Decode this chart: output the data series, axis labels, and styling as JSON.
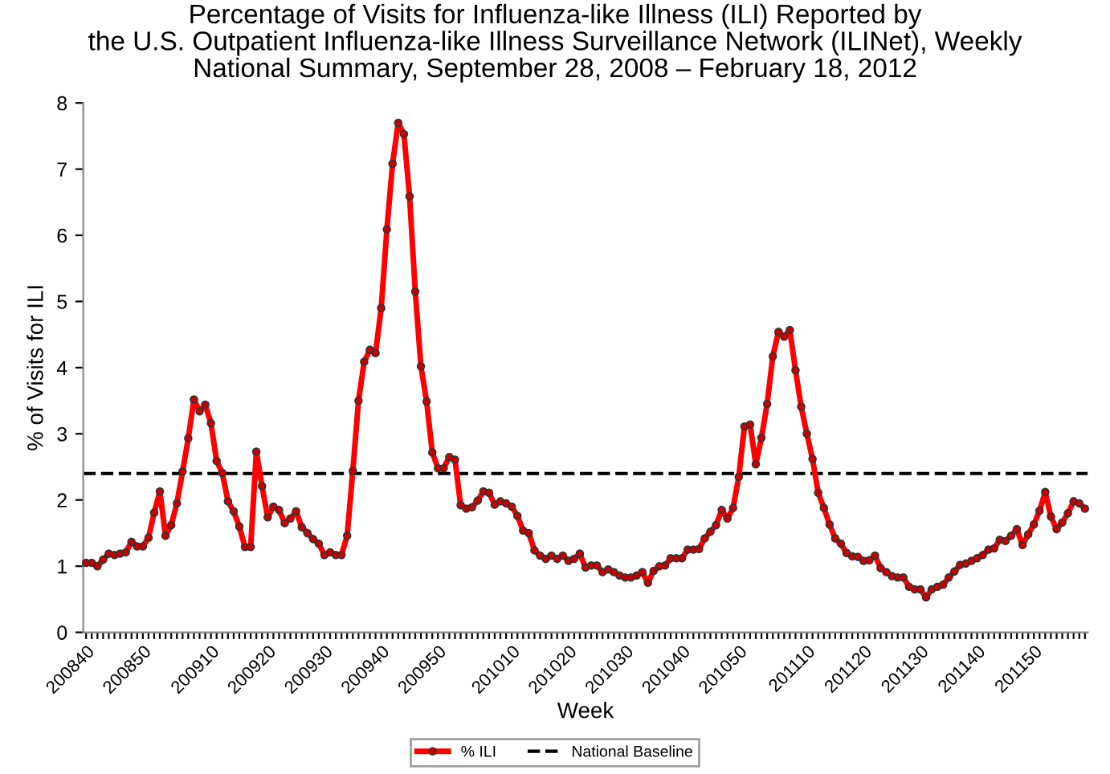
{
  "chart_data": {
    "type": "line",
    "title": "Percentage of Visits for Influenza-like Illness (ILI) Reported by\nthe U.S. Outpatient Influenza-like Illness Surveillance Network (ILINet), Weekly\nNational Summary, September 28, 2008 – February 18, 2012",
    "xlabel": "Week",
    "ylabel": "% of Visits for ILI",
    "categories": [
      "200840",
      null,
      null,
      null,
      null,
      null,
      null,
      null,
      null,
      null,
      "200850",
      null,
      null,
      null,
      null,
      null,
      null,
      null,
      null,
      null,
      null,
      null,
      "200910",
      null,
      null,
      null,
      null,
      null,
      null,
      null,
      null,
      null,
      "200920",
      null,
      null,
      null,
      null,
      null,
      null,
      null,
      null,
      null,
      "200930",
      null,
      null,
      null,
      null,
      null,
      null,
      null,
      null,
      null,
      "200940",
      null,
      null,
      null,
      null,
      null,
      null,
      null,
      null,
      null,
      "200950",
      null,
      null,
      null,
      null,
      null,
      null,
      null,
      null,
      null,
      null,
      null,
      null,
      "201010",
      null,
      null,
      null,
      null,
      null,
      null,
      null,
      null,
      null,
      "201020",
      null,
      null,
      null,
      null,
      null,
      null,
      null,
      null,
      null,
      "201030",
      null,
      null,
      null,
      null,
      null,
      null,
      null,
      null,
      null,
      "201040",
      null,
      null,
      null,
      null,
      null,
      null,
      null,
      null,
      null,
      "201050",
      null,
      null,
      null,
      null,
      null,
      null,
      null,
      null,
      null,
      null,
      null,
      "201110",
      null,
      null,
      null,
      null,
      null,
      null,
      null,
      null,
      null,
      "201120",
      null,
      null,
      null,
      null,
      null,
      null,
      null,
      null,
      null,
      "201130",
      null,
      null,
      null,
      null,
      null,
      null,
      null,
      null,
      null,
      "201140",
      null,
      null,
      null,
      null,
      null,
      null,
      null,
      null,
      null,
      "201150",
      null,
      null,
      null,
      null,
      null,
      null,
      null,
      null,
      null
    ],
    "series": [
      {
        "name": "% ILI",
        "color": "#ff0000",
        "values": [
          1.05,
          1.05,
          1.0,
          1.1,
          1.19,
          1.17,
          1.19,
          1.21,
          1.37,
          1.3,
          1.3,
          1.43,
          1.81,
          2.13,
          1.46,
          1.62,
          1.95,
          2.43,
          2.93,
          3.52,
          3.34,
          3.44,
          3.16,
          2.59,
          2.41,
          1.98,
          1.83,
          1.6,
          1.29,
          1.29,
          2.73,
          2.21,
          1.74,
          1.9,
          1.85,
          1.65,
          1.72,
          1.83,
          1.59,
          1.5,
          1.41,
          1.34,
          1.17,
          1.21,
          1.17,
          1.17,
          1.46,
          2.44,
          3.5,
          4.09,
          4.27,
          4.22,
          4.9,
          6.09,
          7.08,
          7.7,
          7.53,
          6.59,
          5.15,
          4.02,
          3.49,
          2.72,
          2.48,
          2.48,
          2.65,
          2.61,
          1.92,
          1.87,
          1.89,
          1.99,
          2.13,
          2.11,
          1.93,
          1.98,
          1.95,
          1.9,
          1.76,
          1.54,
          1.5,
          1.24,
          1.16,
          1.11,
          1.16,
          1.11,
          1.16,
          1.08,
          1.11,
          1.19,
          0.98,
          1.01,
          1.01,
          0.91,
          0.95,
          0.91,
          0.86,
          0.83,
          0.83,
          0.86,
          0.91,
          0.75,
          0.93,
          1.0,
          1.01,
          1.12,
          1.12,
          1.12,
          1.25,
          1.25,
          1.26,
          1.42,
          1.52,
          1.62,
          1.85,
          1.72,
          1.88,
          2.35,
          3.11,
          3.14,
          2.54,
          2.94,
          3.45,
          4.17,
          4.54,
          4.47,
          4.57,
          3.96,
          3.41,
          3.0,
          2.62,
          2.11,
          1.88,
          1.63,
          1.42,
          1.34,
          1.2,
          1.15,
          1.14,
          1.08,
          1.09,
          1.16,
          0.97,
          0.91,
          0.85,
          0.83,
          0.83,
          0.69,
          0.65,
          0.65,
          0.53,
          0.65,
          0.69,
          0.72,
          0.83,
          0.92,
          1.02,
          1.04,
          1.08,
          1.12,
          1.17,
          1.25,
          1.27,
          1.4,
          1.38,
          1.46,
          1.56,
          1.32,
          1.48,
          1.63,
          1.84,
          2.12,
          1.75,
          1.56,
          1.66,
          1.8,
          1.98,
          1.95,
          1.87
        ]
      }
    ],
    "ref_lines": [
      {
        "axis": "y",
        "value": 2.4,
        "label": "National Baseline",
        "color": "#000000",
        "line_style": "dashed"
      }
    ],
    "ylim": [
      0,
      8
    ],
    "yticks": [
      0,
      1,
      2,
      3,
      4,
      5,
      6,
      7,
      8
    ],
    "grid": false,
    "legend": "bottom",
    "marker": "circle",
    "line_style": "solid"
  }
}
